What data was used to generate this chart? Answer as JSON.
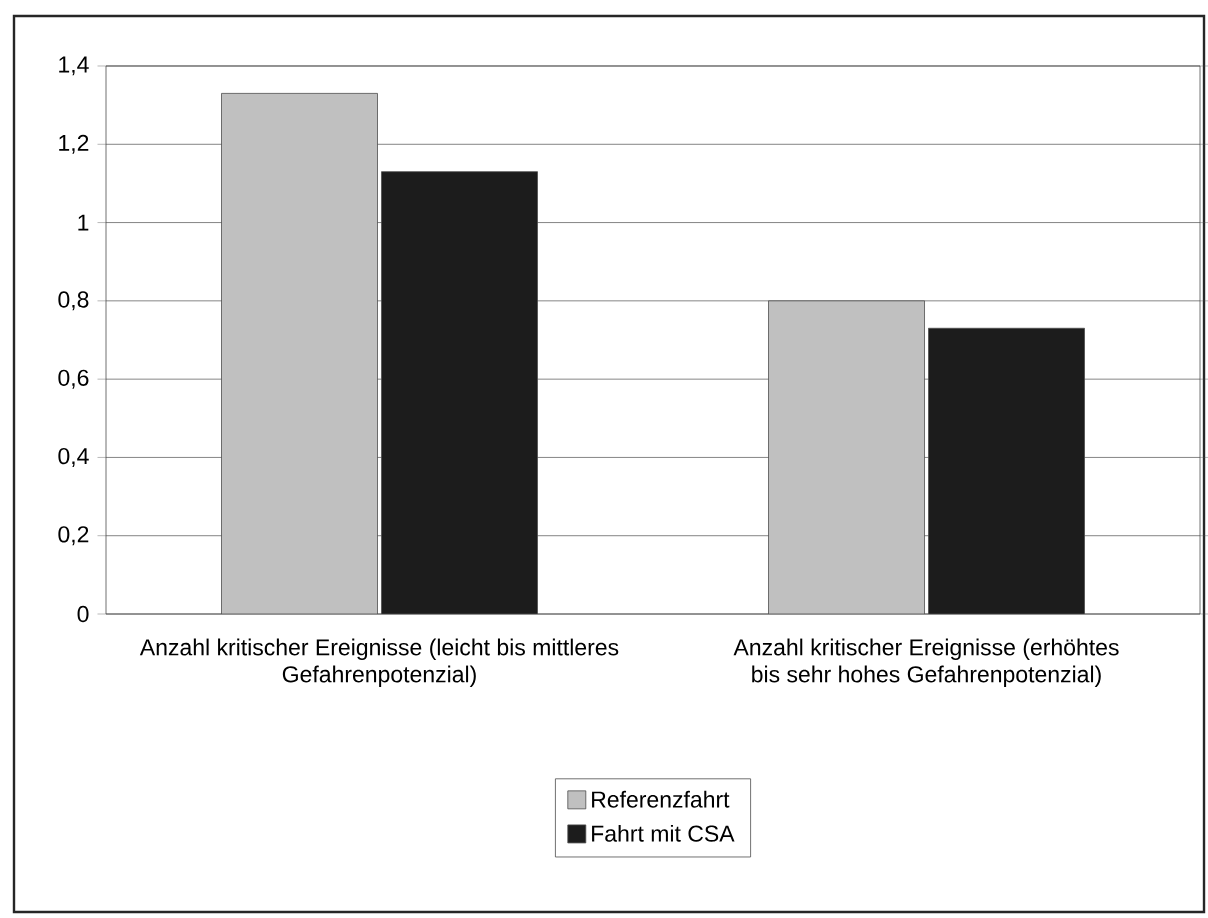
{
  "chart_data": {
    "type": "bar",
    "categories": [
      "Anzahl kritischer Ereignisse (leicht bis mittleres Gefahrenpotenzial)",
      "Anzahl kritischer Ereignisse (erhöhtes bis sehr hohes Gefahrenpotenzial)"
    ],
    "series": [
      {
        "name": "Referenzfahrt",
        "color": "#c0c0c0",
        "values": [
          1.33,
          0.8
        ]
      },
      {
        "name": "Fahrt mit CSA",
        "color": "#1c1c1c",
        "values": [
          1.13,
          0.73
        ]
      }
    ],
    "ylim": [
      0,
      1.4
    ],
    "yticks": [
      {
        "value": 0,
        "label": "0"
      },
      {
        "value": 0.2,
        "label": "0,2"
      },
      {
        "value": 0.4,
        "label": "0,4"
      },
      {
        "value": 0.6,
        "label": "0,6"
      },
      {
        "value": 0.8,
        "label": "0,8"
      },
      {
        "value": 1,
        "label": "1"
      },
      {
        "value": 1.2,
        "label": "1,2"
      },
      {
        "value": 1.4,
        "label": "1,4"
      }
    ],
    "grid": "y",
    "legend": "bottom"
  }
}
